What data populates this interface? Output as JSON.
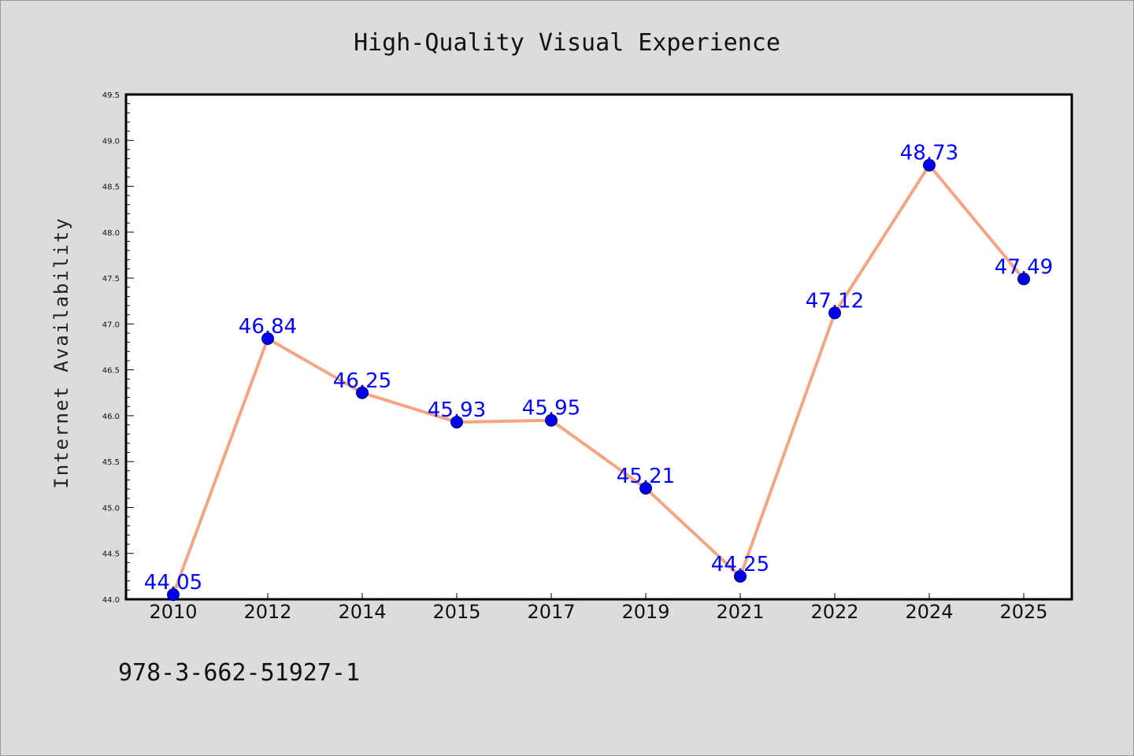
{
  "chart_data": {
    "type": "line",
    "title": "High-Quality Visual Experience",
    "xlabel": "",
    "ylabel": "Internet Availability",
    "categories": [
      "2010",
      "2012",
      "2014",
      "2015",
      "2017",
      "2019",
      "2021",
      "2022",
      "2024",
      "2025"
    ],
    "series": [
      {
        "values": [
          44.05,
          46.84,
          46.25,
          45.93,
          45.95,
          45.21,
          44.25,
          47.12,
          48.73,
          47.49
        ]
      }
    ],
    "data_labels": [
      "44.05",
      "46.84",
      "46.25",
      "45.93",
      "45.95",
      "45.21",
      "44.25",
      "47.12",
      "48.73",
      "47.49"
    ],
    "ylim": [
      44.0,
      49.5
    ],
    "yticks": [
      44.0,
      44.5,
      45.0,
      45.5,
      46.0,
      46.5,
      47.0,
      47.5,
      48.0,
      48.5,
      49.0,
      49.5
    ],
    "ytick_labels": [
      "44.0",
      "44.5",
      "45.0",
      "45.5",
      "46.0",
      "46.5",
      "47.0",
      "47.5",
      "48.0",
      "48.5",
      "49.0",
      "49.5"
    ],
    "grid": false,
    "legend": "none",
    "colors": {
      "line": "#f4a582",
      "marker": "#0000ee",
      "label": "#0000ff",
      "background": "#dcdcdc",
      "plot_background": "#ffffff"
    }
  },
  "footnote": "978-3-662-51927-1"
}
